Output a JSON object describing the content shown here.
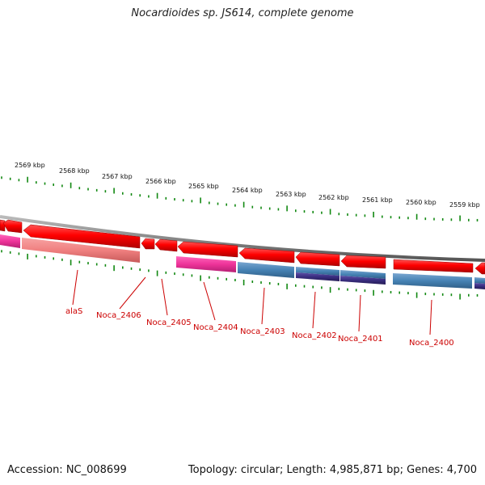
{
  "title": "Nocardioides sp. JS614, complete genome",
  "footer": {
    "accession": "Accession: NC_008699",
    "topology": "Topology: circular; Length: 4,985,871 bp; Genes: 4,700"
  },
  "colors": {
    "cds": "#ff0000",
    "cds_pale": "#f08080",
    "rna_pink": "#ee3399",
    "steel": "#4682b4",
    "purple": "#3a2e80",
    "tick": "#118811",
    "backbone": "#888888",
    "label": "#cc0000"
  },
  "scale": [
    "2569 kbp",
    "2568 kbp",
    "2567 kbp",
    "2566 kbp",
    "2565 kbp",
    "2564 kbp",
    "2563 kbp",
    "2562 kbp",
    "2561 kbp",
    "2560 kbp",
    "2559 kbp"
  ],
  "genes": [
    "alaS",
    "Noca_2406",
    "Noca_2405",
    "Noca_2404",
    "Noca_2403",
    "Noca_2402",
    "Noca_2401",
    "Noca_2400"
  ]
}
